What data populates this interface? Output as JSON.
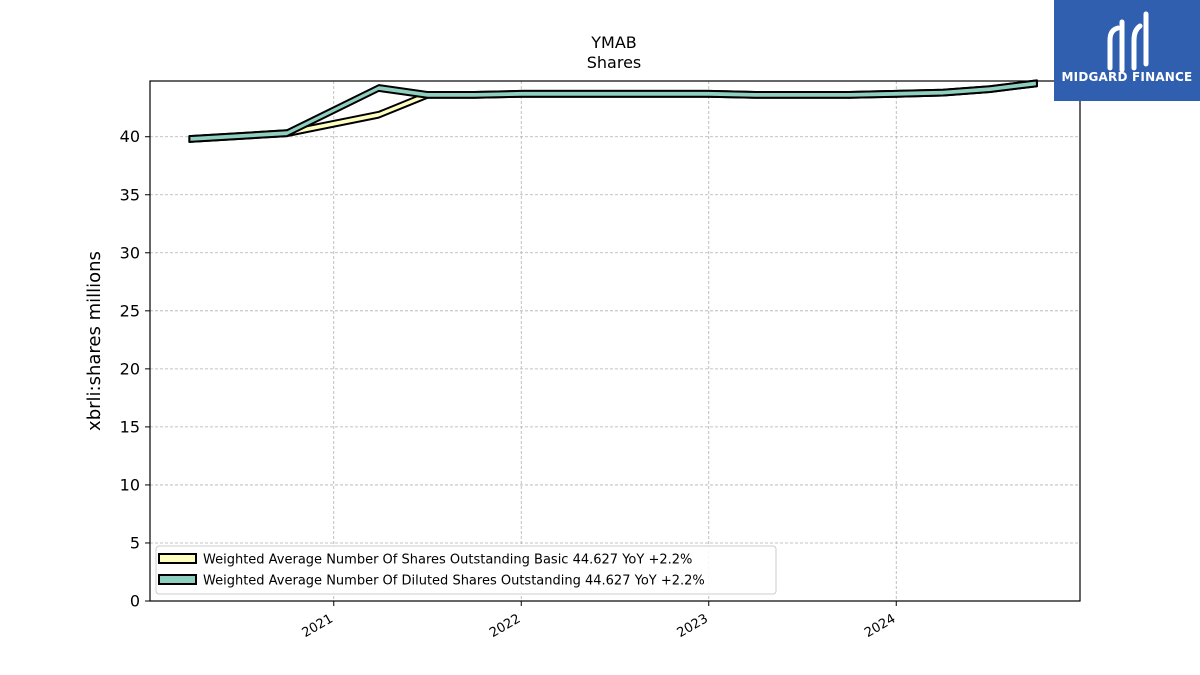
{
  "chart_data": {
    "type": "area",
    "title": "YMAB",
    "subtitle": "Shares",
    "ylabel": "xbrli:shares millions",
    "xlabel": "",
    "ylim": [
      0,
      44.8
    ],
    "xlim": [
      2020.02,
      2024.98
    ],
    "yticks": [
      0,
      5,
      10,
      15,
      20,
      25,
      30,
      35,
      40
    ],
    "xticks": [
      2021,
      2022,
      2023,
      2024
    ],
    "ytick_labels": [
      "0",
      "5",
      "10",
      "15",
      "20",
      "25",
      "30",
      "35",
      "40"
    ],
    "xtick_labels": [
      "2021",
      "2022",
      "2023",
      "2024"
    ],
    "grid": true,
    "legend_position": "lower-left",
    "band_width": 0.5,
    "series": [
      {
        "name": "Weighted Average Number Of Shares Outstanding Basic  44.627 YoY +2.2%",
        "color": "#ffffc0",
        "x": [
          2020.23,
          2020.75,
          2021.24,
          2021.5,
          2021.75,
          2022.0,
          2022.25,
          2022.5,
          2022.75,
          2023.0,
          2023.25,
          2023.5,
          2023.75,
          2024.0,
          2024.25,
          2024.5,
          2024.75
        ],
        "y": [
          39.8,
          40.3,
          41.9,
          43.6,
          43.6,
          43.7,
          43.7,
          43.7,
          43.7,
          43.7,
          43.6,
          43.6,
          43.6,
          43.7,
          43.8,
          44.1,
          44.6
        ]
      },
      {
        "name": "Weighted Average Number Of Diluted Shares Outstanding  44.627 YoY +2.2%",
        "color": "#8ecfc0",
        "x": [
          2020.23,
          2020.75,
          2021.24,
          2021.5,
          2021.75,
          2022.0,
          2022.25,
          2022.5,
          2022.75,
          2023.0,
          2023.25,
          2023.5,
          2023.75,
          2024.0,
          2024.25,
          2024.5,
          2024.75
        ],
        "y": [
          39.8,
          40.3,
          44.2,
          43.6,
          43.6,
          43.7,
          43.7,
          43.7,
          43.7,
          43.7,
          43.6,
          43.6,
          43.6,
          43.7,
          43.8,
          44.1,
          44.6
        ]
      }
    ]
  },
  "logo": {
    "text": "MIDGARD FINANCE",
    "background": "#2f5fae"
  }
}
